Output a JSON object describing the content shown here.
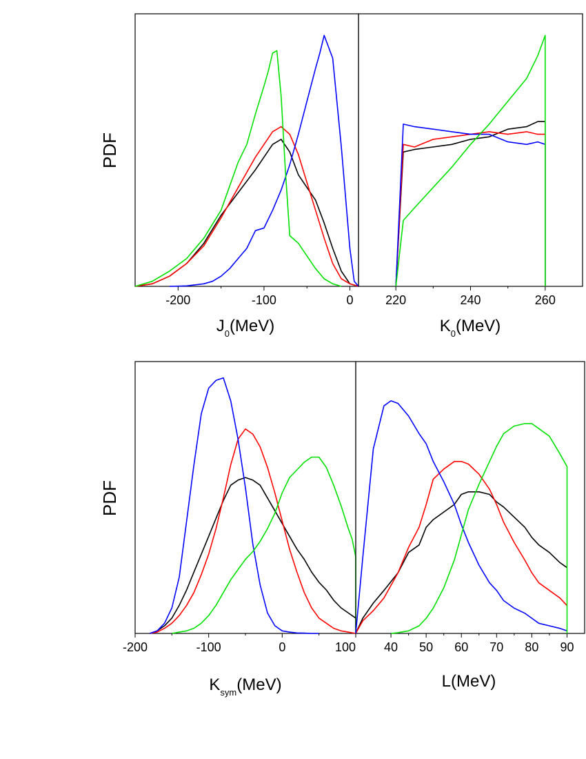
{
  "colors": {
    "black": "#000000",
    "red": "#ff0000",
    "blue": "#0000ff",
    "green": "#00e000"
  },
  "chart_data": [
    {
      "type": "line",
      "ylabel": "PDF",
      "xlabel_main": "J",
      "xlabel_sub": "0",
      "xlabel_unit": "(MeV)",
      "xlim": [
        -250,
        10
      ],
      "ylim": [
        0,
        1.0
      ],
      "xticks": [
        -200,
        -100,
        0
      ],
      "grid": false,
      "legend": "none",
      "series": [
        {
          "color": "black",
          "x": [
            -250,
            -230,
            -210,
            -190,
            -170,
            -150,
            -130,
            -110,
            -90,
            -80,
            -70,
            -60,
            -50,
            -40,
            -30,
            -20,
            -10,
            0,
            10
          ],
          "y": [
            0,
            0.01,
            0.04,
            0.09,
            0.17,
            0.28,
            0.37,
            0.46,
            0.56,
            0.58,
            0.53,
            0.44,
            0.39,
            0.34,
            0.25,
            0.15,
            0.06,
            0.01,
            0
          ]
        },
        {
          "color": "red",
          "x": [
            -250,
            -230,
            -210,
            -190,
            -170,
            -150,
            -130,
            -110,
            -90,
            -80,
            -70,
            -60,
            -50,
            -40,
            -30,
            -20,
            -10,
            0,
            10
          ],
          "y": [
            0,
            0.01,
            0.04,
            0.09,
            0.16,
            0.27,
            0.39,
            0.51,
            0.61,
            0.63,
            0.6,
            0.52,
            0.41,
            0.3,
            0.19,
            0.09,
            0.03,
            0.01,
            0
          ]
        },
        {
          "color": "blue",
          "x": [
            -210,
            -190,
            -170,
            -160,
            -150,
            -140,
            -130,
            -120,
            -110,
            -100,
            -90,
            -80,
            -70,
            -60,
            -50,
            -40,
            -35,
            -30,
            -20,
            -10,
            0,
            5,
            10
          ],
          "y": [
            0,
            0.002,
            0.01,
            0.02,
            0.04,
            0.07,
            0.11,
            0.15,
            0.22,
            0.23,
            0.3,
            0.38,
            0.48,
            0.6,
            0.73,
            0.86,
            0.92,
            0.99,
            0.9,
            0.55,
            0.15,
            0.02,
            0
          ]
        },
        {
          "color": "green",
          "x": [
            -250,
            -230,
            -210,
            -190,
            -170,
            -150,
            -130,
            -120,
            -110,
            -100,
            -95,
            -90,
            -85,
            -80,
            -75,
            -70,
            -60,
            -50,
            -40,
            -30,
            -20,
            -10
          ],
          "y": [
            0,
            0.02,
            0.06,
            0.11,
            0.19,
            0.3,
            0.49,
            0.56,
            0.68,
            0.79,
            0.85,
            0.92,
            0.93,
            0.75,
            0.45,
            0.2,
            0.17,
            0.12,
            0.07,
            0.03,
            0.01,
            0
          ]
        }
      ]
    },
    {
      "type": "line",
      "ylabel": "",
      "xlabel_main": "K",
      "xlabel_sub": "0",
      "xlabel_unit": "(MeV)",
      "xlim": [
        210,
        270
      ],
      "ylim": [
        0,
        1.0
      ],
      "xticks": [
        220,
        240,
        260
      ],
      "grid": false,
      "legend": "none",
      "series": [
        {
          "color": "black",
          "x": [
            220,
            222,
            225,
            230,
            235,
            240,
            245,
            250,
            255,
            258,
            260,
            260
          ],
          "y": [
            0,
            0.53,
            0.54,
            0.55,
            0.56,
            0.58,
            0.59,
            0.62,
            0.63,
            0.65,
            0.65,
            0
          ]
        },
        {
          "color": "red",
          "x": [
            220,
            222,
            225,
            230,
            235,
            240,
            245,
            250,
            255,
            258,
            260,
            260
          ],
          "y": [
            0,
            0.56,
            0.55,
            0.58,
            0.59,
            0.6,
            0.61,
            0.6,
            0.61,
            0.6,
            0.6,
            0
          ]
        },
        {
          "color": "blue",
          "x": [
            220,
            222,
            225,
            230,
            235,
            240,
            245,
            250,
            255,
            258,
            260,
            260
          ],
          "y": [
            0,
            0.64,
            0.63,
            0.62,
            0.61,
            0.6,
            0.6,
            0.57,
            0.56,
            0.57,
            0.56,
            0
          ]
        },
        {
          "color": "green",
          "x": [
            220,
            222,
            225,
            230,
            235,
            240,
            245,
            250,
            255,
            258,
            260,
            260
          ],
          "y": [
            0,
            0.26,
            0.31,
            0.39,
            0.47,
            0.56,
            0.64,
            0.73,
            0.82,
            0.91,
            0.99,
            0
          ]
        }
      ]
    },
    {
      "type": "line",
      "ylabel": "PDF",
      "xlabel_main": "K",
      "xlabel_sub": "sym",
      "xlabel_unit": "(MeV)",
      "xlim": [
        -200,
        100
      ],
      "ylim": [
        0,
        1.0
      ],
      "xticks": [
        -200,
        -100,
        0,
        100
      ],
      "grid": false,
      "legend": "none",
      "series": [
        {
          "color": "black",
          "x": [
            -180,
            -170,
            -160,
            -150,
            -140,
            -130,
            -120,
            -110,
            -100,
            -90,
            -80,
            -70,
            -60,
            -50,
            -40,
            -30,
            -20,
            -10,
            0,
            10,
            20,
            30,
            40,
            50,
            60,
            70,
            80,
            90,
            100
          ],
          "y": [
            0,
            0.01,
            0.03,
            0.06,
            0.11,
            0.17,
            0.24,
            0.31,
            0.38,
            0.45,
            0.52,
            0.58,
            0.6,
            0.61,
            0.6,
            0.58,
            0.53,
            0.48,
            0.43,
            0.38,
            0.33,
            0.29,
            0.24,
            0.2,
            0.17,
            0.13,
            0.1,
            0.08,
            0.06
          ]
        },
        {
          "color": "red",
          "x": [
            -180,
            -170,
            -160,
            -150,
            -140,
            -130,
            -120,
            -110,
            -100,
            -90,
            -80,
            -70,
            -60,
            -50,
            -40,
            -30,
            -20,
            -10,
            0,
            10,
            20,
            30,
            40,
            50,
            60,
            70,
            80,
            90,
            100
          ],
          "y": [
            0,
            0.005,
            0.02,
            0.04,
            0.07,
            0.11,
            0.16,
            0.23,
            0.31,
            0.41,
            0.53,
            0.66,
            0.76,
            0.8,
            0.78,
            0.73,
            0.65,
            0.55,
            0.44,
            0.33,
            0.24,
            0.16,
            0.1,
            0.06,
            0.04,
            0.02,
            0.01,
            0.005,
            0
          ]
        },
        {
          "color": "blue",
          "x": [
            -180,
            -170,
            -160,
            -150,
            -140,
            -130,
            -120,
            -110,
            -100,
            -90,
            -80,
            -70,
            -60,
            -50,
            -40,
            -30,
            -20,
            -10,
            0,
            10,
            20,
            30,
            40,
            50
          ],
          "y": [
            0,
            0.01,
            0.04,
            0.1,
            0.22,
            0.44,
            0.66,
            0.86,
            0.96,
            0.99,
            1.0,
            0.91,
            0.76,
            0.57,
            0.35,
            0.19,
            0.08,
            0.03,
            0.01,
            0.005,
            0.002,
            0.001,
            0,
            0
          ]
        },
        {
          "color": "green",
          "x": [
            -150,
            -140,
            -130,
            -120,
            -110,
            -100,
            -90,
            -80,
            -70,
            -60,
            -50,
            -40,
            -30,
            -20,
            -10,
            0,
            10,
            20,
            30,
            40,
            50,
            60,
            70,
            80,
            90,
            95,
            100,
            100
          ],
          "y": [
            0,
            0.005,
            0.01,
            0.02,
            0.04,
            0.07,
            0.11,
            0.16,
            0.21,
            0.25,
            0.29,
            0.32,
            0.36,
            0.41,
            0.47,
            0.55,
            0.61,
            0.64,
            0.67,
            0.69,
            0.69,
            0.65,
            0.58,
            0.5,
            0.41,
            0.37,
            0.3,
            0
          ]
        }
      ]
    },
    {
      "type": "line",
      "ylabel": "",
      "xlabel_main": "L",
      "xlabel_sub": "",
      "xlabel_unit": "(MeV)",
      "xlim": [
        30,
        95
      ],
      "ylim": [
        0,
        1.0
      ],
      "xticks": [
        40,
        50,
        60,
        70,
        80,
        90
      ],
      "grid": false,
      "legend": "none",
      "series": [
        {
          "color": "black",
          "x": [
            30,
            32,
            35,
            38,
            42,
            45,
            48,
            50,
            52,
            55,
            58,
            60,
            62,
            65,
            68,
            70,
            72,
            75,
            78,
            80,
            82,
            85,
            88,
            90
          ],
          "y": [
            0,
            0.06,
            0.12,
            0.17,
            0.24,
            0.32,
            0.35,
            0.42,
            0.45,
            0.48,
            0.51,
            0.55,
            0.56,
            0.56,
            0.55,
            0.52,
            0.5,
            0.46,
            0.42,
            0.38,
            0.35,
            0.32,
            0.28,
            0.26
          ]
        },
        {
          "color": "red",
          "x": [
            30,
            32,
            35,
            38,
            42,
            45,
            48,
            50,
            52,
            55,
            58,
            60,
            62,
            65,
            68,
            70,
            72,
            75,
            78,
            80,
            82,
            85,
            88,
            90
          ],
          "y": [
            0,
            0.05,
            0.09,
            0.14,
            0.24,
            0.34,
            0.42,
            0.51,
            0.61,
            0.65,
            0.68,
            0.68,
            0.67,
            0.63,
            0.57,
            0.51,
            0.44,
            0.36,
            0.29,
            0.24,
            0.2,
            0.17,
            0.14,
            0.11
          ]
        },
        {
          "color": "blue",
          "x": [
            30,
            32,
            35,
            38,
            40,
            42,
            45,
            48,
            50,
            52,
            55,
            58,
            60,
            62,
            65,
            68,
            70,
            72,
            75,
            78,
            80,
            82,
            85,
            88,
            90
          ],
          "y": [
            0,
            0.3,
            0.73,
            0.9,
            0.92,
            0.91,
            0.86,
            0.79,
            0.75,
            0.68,
            0.6,
            0.51,
            0.43,
            0.36,
            0.27,
            0.2,
            0.17,
            0.13,
            0.1,
            0.08,
            0.06,
            0.04,
            0.03,
            0.02,
            0.01
          ]
        },
        {
          "color": "green",
          "x": [
            40,
            42,
            45,
            48,
            50,
            52,
            55,
            58,
            60,
            62,
            65,
            68,
            70,
            72,
            75,
            78,
            80,
            82,
            85,
            88,
            90,
            90
          ],
          "y": [
            0,
            0.003,
            0.01,
            0.03,
            0.06,
            0.1,
            0.18,
            0.29,
            0.39,
            0.49,
            0.59,
            0.68,
            0.74,
            0.79,
            0.82,
            0.83,
            0.83,
            0.81,
            0.78,
            0.71,
            0.66,
            0
          ]
        }
      ]
    }
  ]
}
